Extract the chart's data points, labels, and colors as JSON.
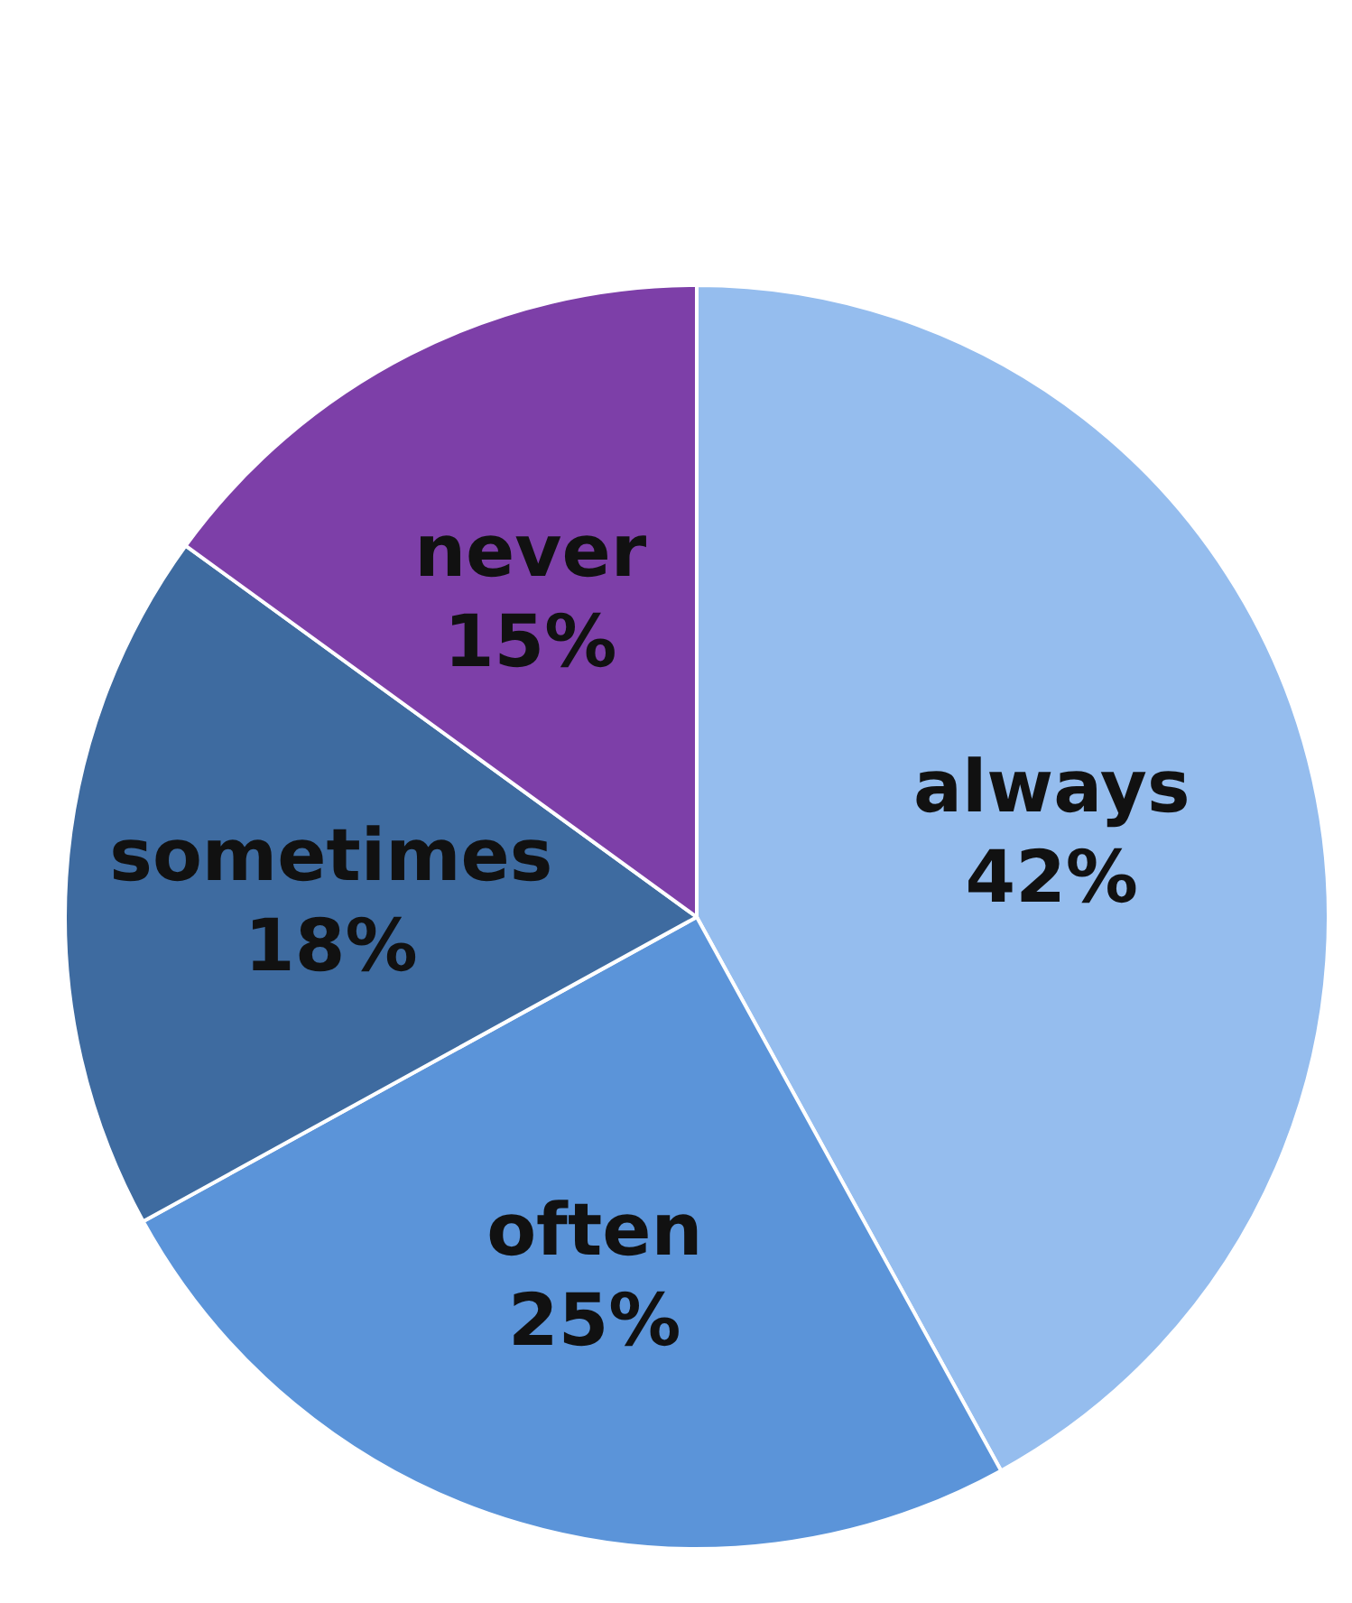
{
  "chart_data": {
    "type": "pie",
    "categories": [
      "always",
      "often",
      "sometimes",
      "never"
    ],
    "values": [
      42,
      25,
      18,
      15
    ],
    "colors": [
      "#95bdee",
      "#5b94d9",
      "#3e6ba0",
      "#7d3fa8"
    ],
    "value_labels": [
      "42%",
      "25%",
      "18%",
      "15%"
    ]
  }
}
